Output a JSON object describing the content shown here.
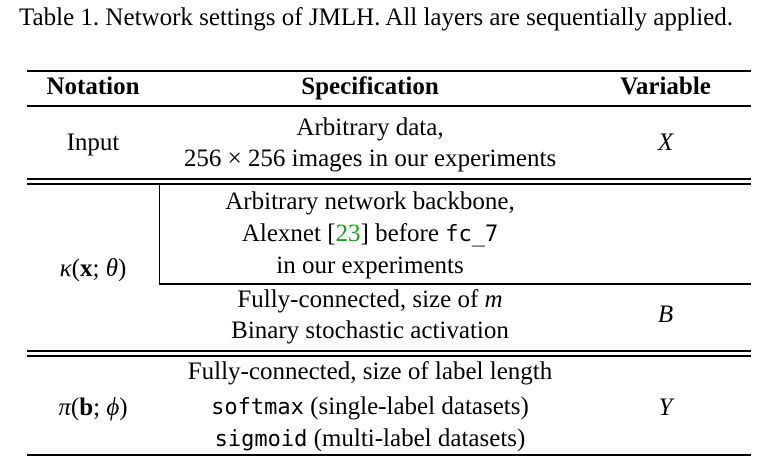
{
  "caption": {
    "text": "Table 1. Network settings of JMLH. All layers are sequentially applied."
  },
  "table": {
    "headers": {
      "notation": "Notation",
      "specification": "Specification",
      "variable": "Variable"
    },
    "rows": {
      "input": {
        "notation": "Input",
        "spec_line1": "Arbitrary data,",
        "spec_line2_a": "256",
        "spec_line2_times": "×",
        "spec_line2_b": "256",
        "spec_line2_rest": " images in our experiments",
        "variable": "X"
      },
      "kappa": {
        "notation_symbol": "κ",
        "notation_arg1": "x",
        "notation_arg2": "θ",
        "spec_line1": "Arbitrary network backbone,",
        "spec_line2_pre": "Alexnet [",
        "spec_line2_cite": "23",
        "spec_line2_mid": "] before ",
        "spec_line2_code": "fc_7",
        "spec_line3": "in our experiments"
      },
      "fc_binary": {
        "spec_line1_pre": "Fully-connected, size of ",
        "spec_line1_var": "m",
        "spec_line2": "Binary stochastic activation",
        "variable": "B"
      },
      "pi": {
        "notation_symbol": "π",
        "notation_arg1": "b",
        "notation_arg2": "ϕ",
        "spec_line1": "Fully-connected, size of label length",
        "spec_line2_code": "softmax",
        "spec_line2_rest": " (single-label datasets)",
        "spec_line3_code": "sigmoid",
        "spec_line3_rest": " (multi-label datasets)",
        "variable": "Y"
      }
    }
  }
}
